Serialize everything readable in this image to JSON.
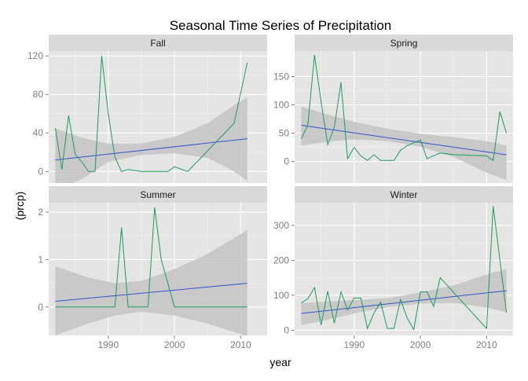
{
  "chart_data": {
    "type": "line",
    "title": "Seasonal Time Series of Precipitation",
    "xlabel": "year",
    "ylabel": "(prcp)",
    "xlim": [
      1981,
      2014
    ],
    "x_ticks": [
      1990,
      2000,
      2010
    ],
    "series_color": "#1b9e5e",
    "trend_color": "#3355cc",
    "band_color": "#c4c4c4",
    "panel_bg": "#e5e5e5",
    "strip_bg": "#d9d9d9",
    "grid": true,
    "panels": [
      {
        "name": "Fall",
        "ylim": [
          -12,
          125
        ],
        "y_ticks": [
          0,
          40,
          80,
          120
        ],
        "x": [
          1982,
          1983,
          1984,
          1985,
          1986,
          1987,
          1988,
          1989,
          1990,
          1991,
          1992,
          1993,
          1995,
          1997,
          1999,
          2000,
          2002,
          2009,
          2011
        ],
        "values": [
          45,
          2,
          58,
          18,
          10,
          0,
          0,
          120,
          60,
          15,
          0,
          2,
          0,
          0,
          0,
          5,
          0,
          50,
          113
        ],
        "trend": [
          12,
          34
        ],
        "band_upper": [
          [
            1982,
            45
          ],
          [
            1986,
            35
          ],
          [
            1990,
            29
          ],
          [
            1995,
            29
          ],
          [
            2000,
            36
          ],
          [
            2005,
            50
          ],
          [
            2009,
            69
          ],
          [
            2011,
            77
          ]
        ],
        "band_lower": [
          [
            1982,
            -20
          ],
          [
            1986,
            -8
          ],
          [
            1990,
            10
          ],
          [
            1995,
            17
          ],
          [
            2000,
            19
          ],
          [
            2005,
            14
          ],
          [
            2009,
            0
          ],
          [
            2011,
            -10
          ]
        ]
      },
      {
        "name": "Spring",
        "ylim": [
          -38,
          195
        ],
        "y_ticks": [
          0,
          50,
          100,
          150
        ],
        "x": [
          1982,
          1983,
          1984,
          1985,
          1986,
          1987,
          1988,
          1989,
          1990,
          1991,
          1992,
          1993,
          1994,
          1995,
          1996,
          1997,
          1998,
          2000,
          2001,
          2003,
          2005,
          2010,
          2011,
          2012,
          2013
        ],
        "values": [
          40,
          65,
          188,
          105,
          30,
          60,
          140,
          5,
          25,
          10,
          2,
          12,
          2,
          2,
          2,
          20,
          28,
          38,
          5,
          15,
          12,
          10,
          2,
          88,
          50
        ],
        "trend": [
          64,
          12
        ],
        "band_upper": [
          [
            1982,
            97
          ],
          [
            1986,
            83
          ],
          [
            1990,
            70
          ],
          [
            1995,
            58
          ],
          [
            2000,
            49
          ],
          [
            2005,
            43
          ],
          [
            2010,
            36
          ],
          [
            2013,
            28
          ]
        ],
        "band_lower": [
          [
            1982,
            28
          ],
          [
            1986,
            35
          ],
          [
            1990,
            39
          ],
          [
            1995,
            36
          ],
          [
            2000,
            26
          ],
          [
            2005,
            8
          ],
          [
            2010,
            -20
          ],
          [
            2013,
            -32
          ]
        ]
      },
      {
        "name": "Summer",
        "ylim": [
          -0.6,
          2.2
        ],
        "y_ticks": [
          0,
          1,
          2
        ],
        "x": [
          1982,
          1991,
          1992,
          1993,
          1994,
          1996,
          1997,
          1998,
          2000,
          2011
        ],
        "values": [
          0,
          0,
          1.68,
          0,
          0,
          0,
          2.1,
          1.0,
          0,
          0
        ],
        "trend": [
          0.12,
          0.5
        ],
        "band_upper": [
          [
            1982,
            0.86
          ],
          [
            1987,
            0.62
          ],
          [
            1991,
            0.5
          ],
          [
            1995,
            0.55
          ],
          [
            2000,
            0.8
          ],
          [
            2005,
            1.12
          ],
          [
            2011,
            1.62
          ]
        ],
        "band_lower": [
          [
            1982,
            -0.6
          ],
          [
            1987,
            -0.35
          ],
          [
            1991,
            -0.18
          ],
          [
            1995,
            -0.1
          ],
          [
            2000,
            -0.18
          ],
          [
            2005,
            -0.35
          ],
          [
            2011,
            -0.62
          ]
        ]
      },
      {
        "name": "Winter",
        "ylim": [
          -15,
          365
        ],
        "y_ticks": [
          0,
          100,
          200,
          300
        ],
        "x": [
          1982,
          1983,
          1984,
          1985,
          1986,
          1987,
          1988,
          1989,
          1990,
          1991,
          1992,
          1993,
          1994,
          1995,
          1996,
          1997,
          1998,
          1999,
          2000,
          2001,
          2002,
          2003,
          2010,
          2011,
          2013
        ],
        "values": [
          78,
          90,
          122,
          15,
          112,
          20,
          110,
          58,
          92,
          92,
          5,
          50,
          80,
          5,
          5,
          88,
          35,
          2,
          110,
          110,
          68,
          150,
          5,
          355,
          50
        ],
        "trend": [
          48,
          113
        ],
        "band_upper": [
          [
            1982,
            78
          ],
          [
            1986,
            82
          ],
          [
            1990,
            86
          ],
          [
            1995,
            92
          ],
          [
            2000,
            108
          ],
          [
            2005,
            128
          ],
          [
            2010,
            160
          ],
          [
            2013,
            175
          ]
        ],
        "band_lower": [
          [
            1982,
            15
          ],
          [
            1986,
            30
          ],
          [
            1990,
            48
          ],
          [
            1995,
            66
          ],
          [
            2000,
            76
          ],
          [
            2005,
            78
          ],
          [
            2010,
            65
          ],
          [
            2013,
            52
          ]
        ]
      }
    ]
  }
}
